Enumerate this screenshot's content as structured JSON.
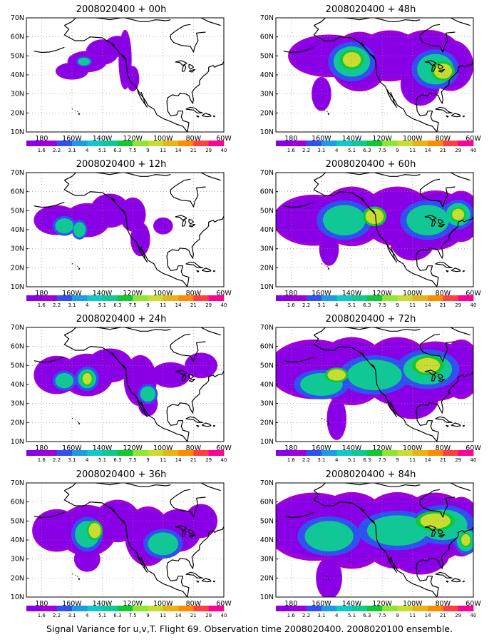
{
  "map_data": {
    "lat_labels": [
      "70N",
      "60N",
      "50N",
      "40N",
      "30N",
      "20N",
      "10N"
    ],
    "lon_labels": [
      "180",
      "160W",
      "140W",
      "120W",
      "100W",
      "80W",
      "60W"
    ],
    "colorbar_labels": [
      "1.6",
      "2.2",
      "3.1",
      "4",
      "5.1",
      "6.3",
      "7.5",
      "9",
      "11",
      "14",
      "21",
      "29",
      "40"
    ],
    "colors": [
      "#8a00e6",
      "#a000d8",
      "#3050f0",
      "#1e9be6",
      "#10c8c8",
      "#10c896",
      "#10c832",
      "#8ce632",
      "#c8dc32",
      "#e6b414",
      "#ff8c00",
      "#ff4040",
      "#ff0096"
    ]
  },
  "panels": [
    {
      "title": "2008020400 + 00h",
      "plume": {
        "blobs": [
          [
            -160,
            42,
            10,
            4
          ],
          [
            -150,
            47,
            12,
            5
          ],
          [
            -140,
            52,
            10,
            6
          ],
          [
            -130,
            55,
            8,
            5
          ],
          [
            -125,
            48,
            4,
            14
          ],
          [
            -120,
            38,
            4,
            6
          ]
        ],
        "levels": [
          [
            [
              -152,
              47,
              4,
              2
            ]
          ]
        ]
      }
    },
    {
      "title": "2008020400 + 48h",
      "plume": {
        "blobs": [
          [
            -155,
            50,
            25,
            10
          ],
          [
            -135,
            47,
            18,
            14
          ],
          [
            -115,
            50,
            20,
            12
          ],
          [
            -90,
            48,
            22,
            14
          ],
          [
            -75,
            45,
            14,
            12
          ],
          [
            -160,
            30,
            6,
            8
          ],
          [
            -95,
            35,
            12,
            10
          ]
        ],
        "levels": [
          [
            [
              -140,
              47,
              12,
              8
            ],
            [
              -85,
              43,
              12,
              8
            ]
          ],
          [
            [
              -140,
              48,
              6,
              4
            ],
            [
              -80,
              42,
              6,
              4
            ]
          ]
        ]
      }
    },
    {
      "title": "2008020400 + 12h",
      "plume": {
        "blobs": [
          [
            -170,
            45,
            14,
            7
          ],
          [
            -150,
            45,
            14,
            8
          ],
          [
            -135,
            50,
            12,
            8
          ],
          [
            -120,
            48,
            8,
            8
          ],
          [
            -115,
            35,
            6,
            8
          ],
          [
            -100,
            42,
            6,
            4
          ]
        ],
        "levels": [
          [
            [
              -165,
              42,
              6,
              4
            ],
            [
              -155,
              40,
              4,
              4
            ]
          ]
        ]
      }
    },
    {
      "title": "2008020400 + 60h",
      "plume": {
        "blobs": [
          [
            -165,
            45,
            25,
            12
          ],
          [
            -140,
            47,
            20,
            14
          ],
          [
            -110,
            47,
            22,
            14
          ],
          [
            -85,
            45,
            20,
            14
          ],
          [
            -68,
            47,
            12,
            12
          ],
          [
            -155,
            30,
            6,
            8
          ],
          [
            -100,
            35,
            14,
            10
          ]
        ],
        "levels": [
          [
            [
              -145,
              45,
              14,
              8
            ],
            [
              -90,
              45,
              14,
              8
            ],
            [
              -70,
              48,
              8,
              6
            ]
          ],
          [
            [
              -125,
              47,
              6,
              4
            ],
            [
              -70,
              48,
              4,
              3
            ]
          ]
        ]
      }
    },
    {
      "title": "2008020400 + 24h",
      "plume": {
        "blobs": [
          [
            -170,
            45,
            14,
            9
          ],
          [
            -150,
            45,
            16,
            10
          ],
          [
            -135,
            50,
            14,
            8
          ],
          [
            -115,
            42,
            10,
            12
          ],
          [
            -95,
            45,
            12,
            6
          ],
          [
            -75,
            50,
            10,
            6
          ],
          [
            -110,
            30,
            6,
            6
          ]
        ],
        "levels": [
          [
            [
              -165,
              42,
              6,
              4
            ],
            [
              -150,
              43,
              6,
              5
            ],
            [
              -110,
              35,
              5,
              4
            ]
          ],
          [
            [
              -150,
              43,
              3,
              3
            ]
          ]
        ]
      }
    },
    {
      "title": "2008020400 + 72h",
      "plume": {
        "blobs": [
          [
            -165,
            48,
            28,
            14
          ],
          [
            -140,
            47,
            22,
            16
          ],
          [
            -110,
            47,
            22,
            16
          ],
          [
            -85,
            47,
            22,
            14
          ],
          [
            -68,
            48,
            12,
            14
          ],
          [
            -150,
            22,
            6,
            10
          ],
          [
            -100,
            33,
            16,
            10
          ]
        ],
        "levels": [
          [
            [
              -160,
              40,
              14,
              6
            ],
            [
              -125,
              45,
              18,
              8
            ],
            [
              -90,
              48,
              16,
              8
            ]
          ],
          [
            [
              -90,
              50,
              8,
              4
            ],
            [
              -150,
              45,
              6,
              3
            ]
          ]
        ]
      }
    },
    {
      "title": "2008020400 + 36h",
      "plume": {
        "blobs": [
          [
            -170,
            45,
            15,
            10
          ],
          [
            -150,
            45,
            18,
            12
          ],
          [
            -130,
            50,
            14,
            10
          ],
          [
            -110,
            42,
            14,
            14
          ],
          [
            -90,
            45,
            14,
            10
          ],
          [
            -75,
            50,
            10,
            8
          ],
          [
            -150,
            30,
            8,
            6
          ]
        ],
        "levels": [
          [
            [
              -150,
              43,
              8,
              7
            ],
            [
              -100,
              38,
              10,
              6
            ]
          ],
          [
            [
              -145,
              45,
              4,
              4
            ]
          ]
        ]
      }
    },
    {
      "title": "2008020400 + 84h",
      "plume": {
        "blobs": [
          [
            -165,
            47,
            30,
            16
          ],
          [
            -140,
            45,
            24,
            18
          ],
          [
            -110,
            45,
            24,
            18
          ],
          [
            -85,
            47,
            22,
            16
          ],
          [
            -68,
            47,
            12,
            14
          ],
          [
            -155,
            20,
            8,
            10
          ],
          [
            -95,
            33,
            18,
            10
          ]
        ],
        "levels": [
          [
            [
              -155,
              42,
              16,
              8
            ],
            [
              -110,
              45,
              20,
              8
            ],
            [
              -80,
              48,
              16,
              8
            ],
            [
              -65,
              40,
              6,
              6
            ]
          ],
          [
            [
              -85,
              50,
              10,
              4
            ],
            [
              -65,
              40,
              3,
              3
            ]
          ]
        ]
      }
    }
  ],
  "caption": "Signal Variance for u,v,T. Flight 69. Observation time 2008020400. 2008020100 ensemble."
}
